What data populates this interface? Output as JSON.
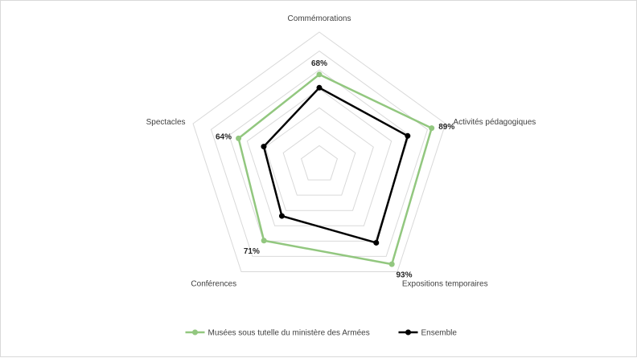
{
  "chart_data": {
    "type": "radar",
    "title": "",
    "categories": [
      "Commémorations",
      "Activités pédagogiques",
      "Expositions temporaires",
      "Conférences",
      "Spectacles"
    ],
    "rmax": 100,
    "rings": 7,
    "grid": true,
    "legend_position": "bottom",
    "series": [
      {
        "name": "Musées sous tutelle du ministère des Armées",
        "color": "#92c77f",
        "values": [
          68,
          89,
          93,
          71,
          64
        ],
        "labels": [
          "68%",
          "89%",
          "93%",
          "71%",
          "64%"
        ]
      },
      {
        "name": "Ensemble",
        "color": "#000000",
        "values": [
          58,
          70,
          73,
          48,
          44
        ]
      }
    ]
  }
}
